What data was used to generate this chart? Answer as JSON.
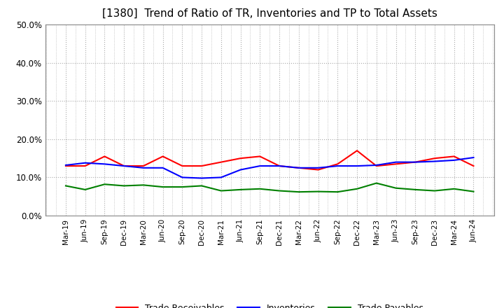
{
  "title": "[1380]  Trend of Ratio of TR, Inventories and TP to Total Assets",
  "x_labels": [
    "Mar-19",
    "Jun-19",
    "Sep-19",
    "Dec-19",
    "Mar-20",
    "Jun-20",
    "Sep-20",
    "Dec-20",
    "Mar-21",
    "Jun-21",
    "Sep-21",
    "Dec-21",
    "Mar-22",
    "Jun-22",
    "Sep-22",
    "Dec-22",
    "Mar-23",
    "Jun-23",
    "Sep-23",
    "Dec-23",
    "Mar-24",
    "Jun-24"
  ],
  "trade_receivables": [
    0.13,
    0.13,
    0.155,
    0.13,
    0.13,
    0.155,
    0.13,
    0.13,
    0.14,
    0.15,
    0.155,
    0.13,
    0.125,
    0.12,
    0.135,
    0.17,
    0.13,
    0.135,
    0.14,
    0.15,
    0.155,
    0.13
  ],
  "inventories": [
    0.132,
    0.138,
    0.135,
    0.13,
    0.125,
    0.125,
    0.1,
    0.098,
    0.1,
    0.12,
    0.13,
    0.13,
    0.125,
    0.125,
    0.13,
    0.13,
    0.132,
    0.14,
    0.14,
    0.142,
    0.145,
    0.152
  ],
  "trade_payables": [
    0.078,
    0.068,
    0.082,
    0.078,
    0.08,
    0.075,
    0.075,
    0.078,
    0.065,
    0.068,
    0.07,
    0.065,
    0.062,
    0.063,
    0.062,
    0.07,
    0.085,
    0.072,
    0.068,
    0.065,
    0.07,
    0.063
  ],
  "tr_color": "#ff0000",
  "inv_color": "#0000ff",
  "tp_color": "#008000",
  "ylim": [
    0.0,
    0.5
  ],
  "yticks": [
    0.0,
    0.1,
    0.2,
    0.3,
    0.4,
    0.5
  ],
  "grid_color": "#aaaaaa",
  "bg_color": "#ffffff",
  "title_fontsize": 11,
  "legend_labels": [
    "Trade Receivables",
    "Inventories",
    "Trade Payables"
  ]
}
